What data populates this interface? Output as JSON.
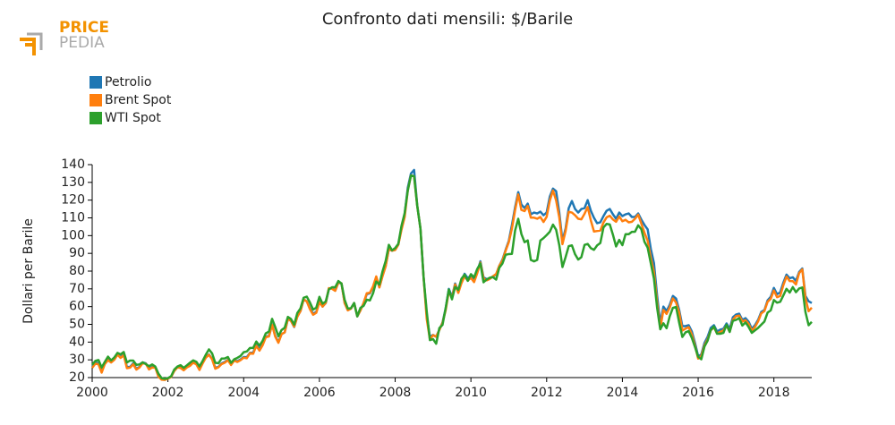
{
  "logo": {
    "top": "PRICE",
    "bottom": "PEDIA"
  },
  "chart_data": {
    "type": "line",
    "title": "Confronto dati mensili: $/Barile",
    "y_label": "Dollari per Barile",
    "legend": "top-left",
    "grid": false,
    "xlim": [
      2000,
      2019
    ],
    "xticks": [
      2000,
      2002,
      2004,
      2006,
      2008,
      2010,
      2012,
      2014,
      2016,
      2018
    ],
    "ylim": [
      20,
      140
    ],
    "yticks": [
      20,
      30,
      40,
      50,
      60,
      70,
      80,
      90,
      100,
      110,
      120,
      130,
      140
    ],
    "x": [
      2000,
      2000.083,
      2000.167,
      2000.25,
      2000.333,
      2000.417,
      2000.5,
      2000.583,
      2000.667,
      2000.75,
      2000.833,
      2000.917,
      2001,
      2001.083,
      2001.167,
      2001.25,
      2001.333,
      2001.417,
      2001.5,
      2001.583,
      2001.667,
      2001.75,
      2001.833,
      2001.917,
      2002,
      2002.083,
      2002.167,
      2002.25,
      2002.333,
      2002.417,
      2002.5,
      2002.583,
      2002.667,
      2002.75,
      2002.833,
      2002.917,
      2003,
      2003.083,
      2003.167,
      2003.25,
      2003.333,
      2003.417,
      2003.5,
      2003.583,
      2003.667,
      2003.75,
      2003.833,
      2003.917,
      2004,
      2004.083,
      2004.167,
      2004.25,
      2004.333,
      2004.417,
      2004.5,
      2004.583,
      2004.667,
      2004.75,
      2004.833,
      2004.917,
      2005,
      2005.083,
      2005.167,
      2005.25,
      2005.333,
      2005.417,
      2005.5,
      2005.583,
      2005.667,
      2005.75,
      2005.833,
      2005.917,
      2006,
      2006.083,
      2006.167,
      2006.25,
      2006.333,
      2006.417,
      2006.5,
      2006.583,
      2006.667,
      2006.75,
      2006.833,
      2006.917,
      2007,
      2007.083,
      2007.167,
      2007.25,
      2007.333,
      2007.417,
      2007.5,
      2007.583,
      2007.667,
      2007.75,
      2007.833,
      2007.917,
      2008,
      2008.083,
      2008.167,
      2008.25,
      2008.333,
      2008.417,
      2008.5,
      2008.583,
      2008.667,
      2008.75,
      2008.833,
      2008.917,
      2009,
      2009.083,
      2009.167,
      2009.25,
      2009.333,
      2009.417,
      2009.5,
      2009.583,
      2009.667,
      2009.75,
      2009.833,
      2009.917,
      2010,
      2010.083,
      2010.167,
      2010.25,
      2010.333,
      2010.417,
      2010.5,
      2010.583,
      2010.667,
      2010.75,
      2010.833,
      2010.917,
      2011,
      2011.083,
      2011.167,
      2011.25,
      2011.333,
      2011.417,
      2011.5,
      2011.583,
      2011.667,
      2011.75,
      2011.833,
      2011.917,
      2012,
      2012.083,
      2012.167,
      2012.25,
      2012.333,
      2012.417,
      2012.5,
      2012.583,
      2012.667,
      2012.75,
      2012.833,
      2012.917,
      2013,
      2013.083,
      2013.167,
      2013.25,
      2013.333,
      2013.417,
      2013.5,
      2013.583,
      2013.667,
      2013.75,
      2013.833,
      2013.917,
      2014,
      2014.083,
      2014.167,
      2014.25,
      2014.333,
      2014.417,
      2014.5,
      2014.583,
      2014.667,
      2014.75,
      2014.833,
      2014.917,
      2015,
      2015.083,
      2015.167,
      2015.25,
      2015.333,
      2015.417,
      2015.5,
      2015.583,
      2015.667,
      2015.75,
      2015.833,
      2015.917,
      2016,
      2016.083,
      2016.167,
      2016.25,
      2016.333,
      2016.417,
      2016.5,
      2016.583,
      2016.667,
      2016.75,
      2016.833,
      2016.917,
      2017,
      2017.083,
      2017.167,
      2017.25,
      2017.333,
      2017.417,
      2017.5,
      2017.583,
      2017.667,
      2017.75,
      2017.833,
      2017.917,
      2018,
      2018.083,
      2018.167,
      2018.25,
      2018.333,
      2018.417,
      2018.5,
      2018.583,
      2018.667,
      2018.75,
      2018.833,
      2018.917,
      2019
    ],
    "series": [
      {
        "name": "Petrolio",
        "color": "#1f77b4",
        "values": [
          26.0,
          28.5,
          28.0,
          23.5,
          28.0,
          30.5,
          29.0,
          30.5,
          33.2,
          31.5,
          33.0,
          26.0,
          26.0,
          28.0,
          25.0,
          26.0,
          28.5,
          28.0,
          25.0,
          26.0,
          25.8,
          21.0,
          19.0,
          19.0,
          19.5,
          20.4,
          24.0,
          26.0,
          25.8,
          24.5,
          26.0,
          27.0,
          28.8,
          27.8,
          24.8,
          28.5,
          31.5,
          33.0,
          30.5,
          25.5,
          26.0,
          28.0,
          28.8,
          30.0,
          27.5,
          29.8,
          29.2,
          30.2,
          31.6,
          31.5,
          34.0,
          34.0,
          38.5,
          36.0,
          38.5,
          43.0,
          43.5,
          50.0,
          43.5,
          40.0,
          44.5,
          45.5,
          53.0,
          52.0,
          48.5,
          54.5,
          57.5,
          64.0,
          63.0,
          59.0,
          56.0,
          57.0,
          63.0,
          60.0,
          62.0,
          70.0,
          70.5,
          69.0,
          73.5,
          73.0,
          62.0,
          58.0,
          59.0,
          62.0,
          54.5,
          58.0,
          62.0,
          67.0,
          67.5,
          71.0,
          76.5,
          71.0,
          77.5,
          83.0,
          92.5,
          91.5,
          92.0,
          95.0,
          104.0,
          112.0,
          127.0,
          135.0,
          137.0,
          117.0,
          104.0,
          77.0,
          55.0,
          43.0,
          44.0,
          43.0,
          47.0,
          51.0,
          59.0,
          70.0,
          65.5,
          73.0,
          68.5,
          74.5,
          78.5,
          76.0,
          77.5,
          75.0,
          79.5,
          85.5,
          76.5,
          75.5,
          76.0,
          77.0,
          78.0,
          83.0,
          86.5,
          92.0,
          97.0,
          106.0,
          116.0,
          124.5,
          117.5,
          115.5,
          118.0,
          112.0,
          113.0,
          112.5,
          113.5,
          111.5,
          113.0,
          122.0,
          126.5,
          125.0,
          113.0,
          97.0,
          104.0,
          115.5,
          119.5,
          115.0,
          113.0,
          115.0,
          115.5,
          120.0,
          114.0,
          110.0,
          107.0,
          107.5,
          111.0,
          114.0,
          115.0,
          112.0,
          109.5,
          113.0,
          111.0,
          112.0,
          112.5,
          110.5,
          110.5,
          112.5,
          109.0,
          106.0,
          103.5,
          92.5,
          84.5,
          66.0,
          50.5,
          60.0,
          57.5,
          61.0,
          66.0,
          64.5,
          58.0,
          49.0,
          49.0,
          49.5,
          46.0,
          39.5,
          32.0,
          33.0,
          39.5,
          43.0,
          48.0,
          49.5,
          46.0,
          47.0,
          47.5,
          50.5,
          47.5,
          54.0,
          55.5,
          56.0,
          52.5,
          53.5,
          51.5,
          47.5,
          49.5,
          52.5,
          57.0,
          58.0,
          63.5,
          65.5,
          70.5,
          67.0,
          68.0,
          73.5,
          78.0,
          76.0,
          76.5,
          74.5,
          79.5,
          81.5,
          66.0,
          63.0,
          62.0
        ]
      },
      {
        "name": "Brent Spot",
        "color": "#ff7f0e",
        "values": [
          25.5,
          27.8,
          27.5,
          22.8,
          27.6,
          29.8,
          28.5,
          30.0,
          32.9,
          31.1,
          32.6,
          25.3,
          25.6,
          27.5,
          24.5,
          25.7,
          28.1,
          27.8,
          24.6,
          25.7,
          25.6,
          20.5,
          18.8,
          18.7,
          19.4,
          20.3,
          23.7,
          25.7,
          25.4,
          24.1,
          25.7,
          26.6,
          28.4,
          27.5,
          24.3,
          28.0,
          31.2,
          32.8,
          30.3,
          25.0,
          25.8,
          27.6,
          28.4,
          29.8,
          27.1,
          29.6,
          28.8,
          29.8,
          31.2,
          30.9,
          33.8,
          33.4,
          37.9,
          35.2,
          38.2,
          42.7,
          43.2,
          49.8,
          43.1,
          39.6,
          44.5,
          45.5,
          53.1,
          51.9,
          48.7,
          54.3,
          57.5,
          64.0,
          62.9,
          58.5,
          55.4,
          56.5,
          62.5,
          60.0,
          62.1,
          70.4,
          70.0,
          68.9,
          73.7,
          73.1,
          61.9,
          57.9,
          58.8,
          62.0,
          54.5,
          57.8,
          62.1,
          67.5,
          67.8,
          71.4,
          77.0,
          70.8,
          77.2,
          82.8,
          92.5,
          91.5,
          91.9,
          94.8,
          103.3,
          110.4,
          125.5,
          133.9,
          133.4,
          116.7,
          104.1,
          76.6,
          53.0,
          41.6,
          43.9,
          43.1,
          46.8,
          50.8,
          57.9,
          68.6,
          64.9,
          72.5,
          67.7,
          73.2,
          77.0,
          74.7,
          76.2,
          73.8,
          78.8,
          84.8,
          75.9,
          74.8,
          75.6,
          77.1,
          78.4,
          83.0,
          86.0,
          91.5,
          96.3,
          104.0,
          114.4,
          123.2,
          114.5,
          113.8,
          116.7,
          110.1,
          110.1,
          109.5,
          110.5,
          107.7,
          110.6,
          119.7,
          125.4,
          119.8,
          110.3,
          95.2,
          102.6,
          113.4,
          113.0,
          111.5,
          109.5,
          109.2,
          112.3,
          116.1,
          108.5,
          102.3,
          102.6,
          102.9,
          107.4,
          110.3,
          111.2,
          109.1,
          107.8,
          110.8,
          108.1,
          108.9,
          107.5,
          107.8,
          109.5,
          111.8,
          106.8,
          101.6,
          97.1,
          87.4,
          79.4,
          62.3,
          47.8,
          58.1,
          55.9,
          59.5,
          64.6,
          62.3,
          56.6,
          46.5,
          47.6,
          48.4,
          44.3,
          38.0,
          30.7,
          32.2,
          38.2,
          41.6,
          46.7,
          48.3,
          44.9,
          45.7,
          46.6,
          49.3,
          45.9,
          52.6,
          54.6,
          54.9,
          51.6,
          52.3,
          50.3,
          46.4,
          48.5,
          51.7,
          56.2,
          57.5,
          62.7,
          64.4,
          69.1,
          65.3,
          66.0,
          72.1,
          76.9,
          74.4,
          74.3,
          72.5,
          78.9,
          81.0,
          64.8,
          57.4,
          59.4
        ]
      },
      {
        "name": "WTI Spot",
        "color": "#2ca02c",
        "values": [
          27.2,
          29.4,
          29.9,
          25.7,
          28.8,
          31.8,
          29.7,
          31.3,
          33.9,
          33.1,
          34.4,
          28.5,
          29.6,
          29.6,
          27.2,
          27.4,
          28.6,
          27.6,
          26.4,
          27.4,
          26.2,
          22.2,
          19.7,
          19.3,
          19.7,
          20.7,
          24.5,
          26.2,
          27.0,
          25.5,
          26.9,
          28.4,
          29.7,
          28.9,
          26.3,
          29.4,
          32.9,
          35.9,
          33.6,
          28.3,
          28.1,
          30.7,
          30.8,
          31.6,
          28.3,
          30.3,
          31.1,
          32.2,
          34.3,
          34.7,
          36.7,
          36.7,
          40.3,
          38.0,
          40.7,
          44.9,
          45.9,
          53.1,
          48.5,
          43.3,
          46.8,
          48.1,
          54.2,
          53.0,
          49.8,
          56.4,
          59.0,
          65.0,
          65.6,
          62.3,
          58.3,
          59.4,
          65.5,
          61.6,
          62.9,
          69.7,
          70.9,
          70.9,
          74.4,
          73.0,
          63.8,
          58.9,
          59.1,
          62.0,
          54.5,
          59.3,
          60.4,
          63.9,
          63.5,
          67.5,
          74.1,
          72.4,
          79.9,
          85.8,
          94.8,
          91.7,
          93.0,
          95.4,
          105.5,
          112.6,
          125.4,
          133.9,
          133.4,
          116.7,
          104.1,
          76.6,
          57.3,
          41.1,
          41.7,
          39.1,
          47.9,
          49.7,
          59.0,
          69.6,
          64.1,
          71.1,
          69.4,
          75.7,
          78.0,
          74.5,
          78.3,
          76.4,
          81.2,
          84.3,
          73.7,
          75.3,
          76.3,
          76.6,
          75.2,
          81.9,
          84.3,
          89.2,
          89.6,
          89.7,
          102.9,
          109.5,
          100.9,
          96.3,
          97.3,
          86.3,
          85.5,
          86.3,
          97.2,
          98.6,
          100.3,
          102.2,
          106.2,
          103.3,
          94.7,
          82.3,
          87.9,
          94.1,
          94.5,
          89.5,
          86.5,
          87.9,
          94.8,
          95.3,
          92.9,
          92.0,
          94.5,
          95.8,
          104.6,
          106.6,
          106.3,
          100.5,
          93.9,
          97.6,
          94.6,
          100.8,
          100.8,
          102.1,
          102.2,
          105.8,
          103.6,
          96.5,
          93.2,
          84.4,
          75.8,
          59.3,
          47.2,
          50.6,
          47.8,
          54.5,
          59.3,
          59.8,
          50.9,
          42.9,
          45.5,
          46.2,
          42.4,
          37.2,
          31.7,
          30.3,
          37.5,
          40.8,
          46.7,
          48.8,
          44.7,
          44.7,
          45.2,
          49.8,
          45.7,
          52.0,
          52.5,
          53.5,
          49.3,
          51.1,
          48.5,
          45.2,
          46.6,
          48.0,
          49.8,
          51.6,
          56.6,
          57.9,
          63.7,
          62.2,
          62.7,
          66.3,
          70.0,
          67.9,
          71.0,
          68.1,
          70.2,
          70.8,
          57.0,
          49.5,
          51.4
        ]
      }
    ]
  }
}
